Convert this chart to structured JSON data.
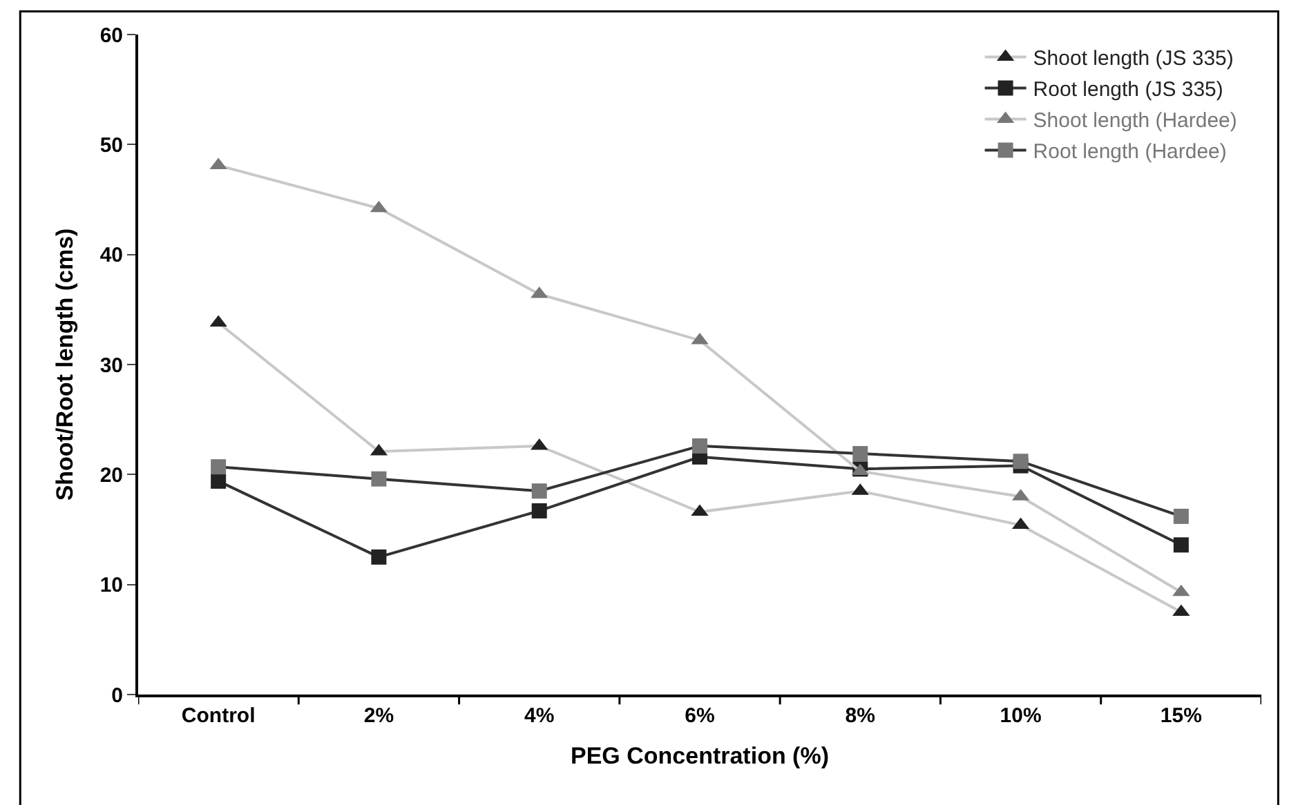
{
  "chart_data": {
    "type": "line",
    "xlabel": "PEG Concentration (%)",
    "ylabel": "Shoot/Root length (cms)",
    "categories": [
      "Control",
      "2%",
      "4%",
      "6%",
      "8%",
      "10%",
      "15%"
    ],
    "ylim": [
      0,
      60
    ],
    "yticks": [
      0,
      10,
      20,
      30,
      40,
      50,
      60
    ],
    "legend": "top right",
    "series": [
      {
        "name": "Shoot length (JS 335)",
        "color": "#222222",
        "marker": "triangle",
        "values": [
          33.8,
          22.1,
          22.6,
          16.6,
          18.5,
          15.4,
          7.5
        ]
      },
      {
        "name": "Root length (JS 335)",
        "color": "#222222",
        "marker": "square",
        "values": [
          19.4,
          12.5,
          16.7,
          21.6,
          20.5,
          20.8,
          13.6
        ]
      },
      {
        "name": "Shoot length (Hardee)",
        "color": "#777777",
        "marker": "triangle",
        "values": [
          48.1,
          44.2,
          36.4,
          32.2,
          20.3,
          18.0,
          9.3
        ]
      },
      {
        "name": "Root length (Hardee)",
        "color": "#777777",
        "marker": "square",
        "values": [
          20.7,
          19.6,
          18.5,
          22.6,
          21.9,
          21.2,
          16.2
        ]
      }
    ]
  }
}
